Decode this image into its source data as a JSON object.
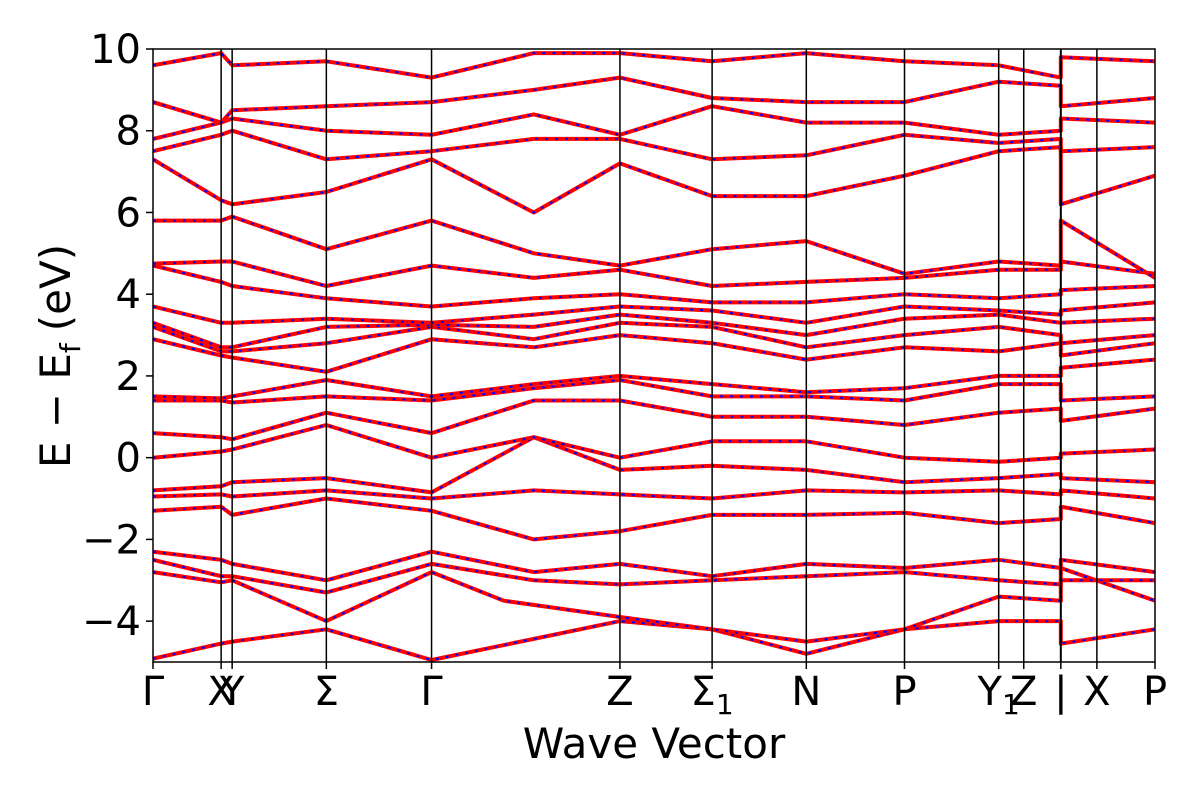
{
  "chart_data": {
    "type": "line",
    "xlabel": "Wave Vector",
    "ylabel": "E − E",
    "ylabel_subscript": "f",
    "ylabel_unit": "(eV)",
    "ylim": [
      -5,
      10
    ],
    "yticks": [
      -4,
      -2,
      0,
      2,
      4,
      6,
      8,
      10
    ],
    "ytick_labels": [
      "−4",
      "−2",
      "0",
      "2",
      "4",
      "6",
      "8",
      "10"
    ],
    "grid": false,
    "legend": "none",
    "high_symmetry_points": [
      {
        "label": "Γ",
        "k": 0.0
      },
      {
        "label": "X",
        "k": 0.068
      },
      {
        "label": "Y",
        "k": 0.079
      },
      {
        "label": "Σ",
        "k": 0.173
      },
      {
        "label": "Γ",
        "k": 0.278
      },
      {
        "label": "Z",
        "k": 0.466
      },
      {
        "label": "Σ",
        "sub": "1",
        "k": 0.558
      },
      {
        "label": "N",
        "k": 0.652
      },
      {
        "label": "P",
        "k": 0.75
      },
      {
        "label": "Y",
        "sub": "1",
        "k": 0.844
      },
      {
        "label": "Z",
        "k": 0.869
      },
      {
        "label": "|",
        "k": 0.906
      },
      {
        "label": "X",
        "k": 0.942
      },
      {
        "label": "P",
        "k": 1.0
      }
    ],
    "series_colors": {
      "spin_up": "#ff0000",
      "spin_down": "#0000ff"
    },
    "bands": [
      [
        [
          0,
          -4.92
        ],
        [
          0.068,
          -4.55
        ],
        [
          0.079,
          -4.5
        ],
        [
          0.173,
          -4.2
        ],
        [
          0.278,
          -4.95
        ],
        [
          0.466,
          -4.0
        ],
        [
          0.558,
          -4.2
        ],
        [
          0.652,
          -4.8
        ],
        [
          0.75,
          -4.2
        ],
        [
          0.844,
          -4.0
        ],
        [
          0.906,
          -4.0
        ],
        [
          0.906,
          -4.55
        ],
        [
          1.0,
          -4.2
        ]
      ],
      [
        [
          0,
          -2.8
        ],
        [
          0.068,
          -3.05
        ],
        [
          0.079,
          -3.0
        ],
        [
          0.173,
          -4.0
        ],
        [
          0.278,
          -2.8
        ],
        [
          0.35,
          -3.5
        ],
        [
          0.466,
          -3.9
        ],
        [
          0.558,
          -4.2
        ],
        [
          0.652,
          -4.5
        ],
        [
          0.75,
          -4.2
        ],
        [
          0.844,
          -3.4
        ],
        [
          0.906,
          -3.5
        ],
        [
          0.906,
          -2.7
        ],
        [
          1.0,
          -3.5
        ]
      ],
      [
        [
          0,
          -2.5
        ],
        [
          0.068,
          -2.9
        ],
        [
          0.079,
          -2.9
        ],
        [
          0.173,
          -3.3
        ],
        [
          0.278,
          -2.6
        ],
        [
          0.38,
          -3.0
        ],
        [
          0.466,
          -3.1
        ],
        [
          0.558,
          -3.0
        ],
        [
          0.652,
          -2.9
        ],
        [
          0.75,
          -2.8
        ],
        [
          0.844,
          -3.0
        ],
        [
          0.906,
          -3.1
        ],
        [
          0.906,
          -3.0
        ],
        [
          1.0,
          -3.0
        ]
      ],
      [
        [
          0,
          -2.3
        ],
        [
          0.068,
          -2.5
        ],
        [
          0.079,
          -2.6
        ],
        [
          0.173,
          -3.0
        ],
        [
          0.278,
          -2.3
        ],
        [
          0.38,
          -2.8
        ],
        [
          0.466,
          -2.6
        ],
        [
          0.558,
          -2.9
        ],
        [
          0.652,
          -2.6
        ],
        [
          0.75,
          -2.7
        ],
        [
          0.844,
          -2.5
        ],
        [
          0.906,
          -2.7
        ],
        [
          0.906,
          -2.5
        ],
        [
          1.0,
          -2.8
        ]
      ],
      [
        [
          0,
          -1.3
        ],
        [
          0.068,
          -1.2
        ],
        [
          0.079,
          -1.4
        ],
        [
          0.173,
          -1.0
        ],
        [
          0.278,
          -1.3
        ],
        [
          0.38,
          -2.0
        ],
        [
          0.466,
          -1.8
        ],
        [
          0.558,
          -1.4
        ],
        [
          0.652,
          -1.4
        ],
        [
          0.75,
          -1.35
        ],
        [
          0.844,
          -1.6
        ],
        [
          0.906,
          -1.5
        ],
        [
          0.906,
          -1.2
        ],
        [
          1.0,
          -1.6
        ]
      ],
      [
        [
          0,
          -0.95
        ],
        [
          0.068,
          -0.9
        ],
        [
          0.079,
          -0.95
        ],
        [
          0.173,
          -0.8
        ],
        [
          0.278,
          -1.0
        ],
        [
          0.38,
          -0.8
        ],
        [
          0.466,
          -0.9
        ],
        [
          0.558,
          -1.0
        ],
        [
          0.652,
          -0.8
        ],
        [
          0.75,
          -0.85
        ],
        [
          0.844,
          -0.8
        ],
        [
          0.906,
          -0.9
        ],
        [
          0.906,
          -0.8
        ],
        [
          1.0,
          -1.0
        ]
      ],
      [
        [
          0,
          -0.8
        ],
        [
          0.068,
          -0.7
        ],
        [
          0.079,
          -0.6
        ],
        [
          0.173,
          -0.5
        ],
        [
          0.278,
          -0.85
        ],
        [
          0.38,
          0.5
        ],
        [
          0.466,
          -0.3
        ],
        [
          0.558,
          -0.2
        ],
        [
          0.652,
          -0.3
        ],
        [
          0.75,
          -0.6
        ],
        [
          0.844,
          -0.5
        ],
        [
          0.906,
          -0.4
        ],
        [
          0.906,
          -0.5
        ],
        [
          1.0,
          -0.6
        ]
      ],
      [
        [
          0,
          0.0
        ],
        [
          0.068,
          0.15
        ],
        [
          0.079,
          0.2
        ],
        [
          0.173,
          0.8
        ],
        [
          0.278,
          0.0
        ],
        [
          0.38,
          0.5
        ],
        [
          0.466,
          0.0
        ],
        [
          0.558,
          0.4
        ],
        [
          0.652,
          0.4
        ],
        [
          0.75,
          0.0
        ],
        [
          0.844,
          -0.1
        ],
        [
          0.906,
          0.0
        ],
        [
          0.906,
          0.1
        ],
        [
          1.0,
          0.2
        ]
      ],
      [
        [
          0,
          0.6
        ],
        [
          0.068,
          0.5
        ],
        [
          0.079,
          0.45
        ],
        [
          0.173,
          1.1
        ],
        [
          0.278,
          0.6
        ],
        [
          0.38,
          1.4
        ],
        [
          0.466,
          1.4
        ],
        [
          0.558,
          1.0
        ],
        [
          0.652,
          1.0
        ],
        [
          0.75,
          0.8
        ],
        [
          0.844,
          1.1
        ],
        [
          0.906,
          1.2
        ],
        [
          0.906,
          0.9
        ],
        [
          1.0,
          1.2
        ]
      ],
      [
        [
          0,
          1.4
        ],
        [
          0.068,
          1.4
        ],
        [
          0.079,
          1.35
        ],
        [
          0.173,
          1.5
        ],
        [
          0.278,
          1.4
        ],
        [
          0.38,
          1.7
        ],
        [
          0.466,
          1.9
        ],
        [
          0.558,
          1.5
        ],
        [
          0.652,
          1.5
        ],
        [
          0.75,
          1.4
        ],
        [
          0.844,
          1.8
        ],
        [
          0.906,
          1.8
        ],
        [
          0.906,
          1.4
        ],
        [
          1.0,
          1.5
        ]
      ],
      [
        [
          0,
          1.5
        ],
        [
          0.068,
          1.45
        ],
        [
          0.079,
          1.5
        ],
        [
          0.173,
          1.9
        ],
        [
          0.278,
          1.5
        ],
        [
          0.38,
          1.8
        ],
        [
          0.466,
          2.0
        ],
        [
          0.558,
          1.8
        ],
        [
          0.652,
          1.6
        ],
        [
          0.75,
          1.7
        ],
        [
          0.844,
          2.0
        ],
        [
          0.906,
          2.0
        ],
        [
          0.906,
          2.2
        ],
        [
          1.0,
          2.4
        ]
      ],
      [
        [
          0,
          2.9
        ],
        [
          0.068,
          2.5
        ],
        [
          0.079,
          2.45
        ],
        [
          0.173,
          2.1
        ],
        [
          0.278,
          2.9
        ],
        [
          0.38,
          2.7
        ],
        [
          0.466,
          3.0
        ],
        [
          0.558,
          2.8
        ],
        [
          0.652,
          2.4
        ],
        [
          0.75,
          2.7
        ],
        [
          0.844,
          2.6
        ],
        [
          0.906,
          2.8
        ],
        [
          0.906,
          2.5
        ],
        [
          1.0,
          2.8
        ]
      ],
      [
        [
          0,
          3.2
        ],
        [
          0.068,
          2.6
        ],
        [
          0.079,
          2.6
        ],
        [
          0.173,
          2.8
        ],
        [
          0.278,
          3.2
        ],
        [
          0.38,
          2.9
        ],
        [
          0.466,
          3.3
        ],
        [
          0.558,
          3.2
        ],
        [
          0.652,
          2.7
        ],
        [
          0.75,
          3.0
        ],
        [
          0.844,
          3.2
        ],
        [
          0.906,
          3.0
        ],
        [
          0.906,
          2.8
        ],
        [
          1.0,
          3.0
        ]
      ],
      [
        [
          0,
          3.3
        ],
        [
          0.068,
          2.7
        ],
        [
          0.079,
          2.7
        ],
        [
          0.173,
          3.2
        ],
        [
          0.278,
          3.25
        ],
        [
          0.38,
          3.2
        ],
        [
          0.466,
          3.5
        ],
        [
          0.558,
          3.3
        ],
        [
          0.652,
          3.0
        ],
        [
          0.75,
          3.4
        ],
        [
          0.844,
          3.5
        ],
        [
          0.906,
          3.3
        ],
        [
          0.906,
          3.3
        ],
        [
          1.0,
          3.4
        ]
      ],
      [
        [
          0,
          3.7
        ],
        [
          0.068,
          3.3
        ],
        [
          0.079,
          3.3
        ],
        [
          0.173,
          3.4
        ],
        [
          0.278,
          3.3
        ],
        [
          0.38,
          3.5
        ],
        [
          0.466,
          3.7
        ],
        [
          0.558,
          3.6
        ],
        [
          0.652,
          3.3
        ],
        [
          0.75,
          3.7
        ],
        [
          0.844,
          3.6
        ],
        [
          0.906,
          3.5
        ],
        [
          0.906,
          3.6
        ],
        [
          1.0,
          3.8
        ]
      ],
      [
        [
          0,
          4.7
        ],
        [
          0.068,
          4.3
        ],
        [
          0.079,
          4.2
        ],
        [
          0.173,
          3.9
        ],
        [
          0.278,
          3.7
        ],
        [
          0.38,
          3.9
        ],
        [
          0.466,
          4.0
        ],
        [
          0.558,
          3.8
        ],
        [
          0.652,
          3.8
        ],
        [
          0.75,
          4.0
        ],
        [
          0.844,
          3.9
        ],
        [
          0.906,
          4.0
        ],
        [
          0.906,
          4.1
        ],
        [
          1.0,
          4.2
        ]
      ],
      [
        [
          0,
          4.75
        ],
        [
          0.068,
          4.8
        ],
        [
          0.079,
          4.8
        ],
        [
          0.173,
          4.2
        ],
        [
          0.278,
          4.7
        ],
        [
          0.38,
          4.4
        ],
        [
          0.466,
          4.6
        ],
        [
          0.558,
          4.2
        ],
        [
          0.652,
          4.3
        ],
        [
          0.75,
          4.4
        ],
        [
          0.844,
          4.6
        ],
        [
          0.906,
          4.6
        ],
        [
          0.906,
          4.8
        ],
        [
          1.0,
          4.5
        ]
      ],
      [
        [
          0,
          5.8
        ],
        [
          0.068,
          5.8
        ],
        [
          0.079,
          5.9
        ],
        [
          0.173,
          5.1
        ],
        [
          0.278,
          5.8
        ],
        [
          0.38,
          5.0
        ],
        [
          0.466,
          4.7
        ],
        [
          0.558,
          5.1
        ],
        [
          0.652,
          5.3
        ],
        [
          0.75,
          4.5
        ],
        [
          0.844,
          4.8
        ],
        [
          0.906,
          4.7
        ],
        [
          0.906,
          5.8
        ],
        [
          1.0,
          4.4
        ]
      ],
      [
        [
          0,
          7.3
        ],
        [
          0.068,
          6.3
        ],
        [
          0.079,
          6.2
        ],
        [
          0.173,
          6.5
        ],
        [
          0.278,
          7.3
        ],
        [
          0.38,
          6.0
        ],
        [
          0.466,
          7.2
        ],
        [
          0.558,
          6.4
        ],
        [
          0.652,
          6.4
        ],
        [
          0.75,
          6.9
        ],
        [
          0.844,
          7.5
        ],
        [
          0.906,
          7.6
        ],
        [
          0.906,
          6.2
        ],
        [
          1.0,
          6.9
        ]
      ],
      [
        [
          0,
          7.5
        ],
        [
          0.068,
          7.9
        ],
        [
          0.079,
          8.0
        ],
        [
          0.173,
          7.3
        ],
        [
          0.278,
          7.5
        ],
        [
          0.38,
          7.8
        ],
        [
          0.466,
          7.8
        ],
        [
          0.558,
          7.3
        ],
        [
          0.652,
          7.4
        ],
        [
          0.75,
          7.9
        ],
        [
          0.844,
          7.7
        ],
        [
          0.906,
          7.8
        ],
        [
          0.906,
          7.5
        ],
        [
          1.0,
          7.6
        ]
      ],
      [
        [
          0,
          7.8
        ],
        [
          0.068,
          8.2
        ],
        [
          0.079,
          8.3
        ],
        [
          0.173,
          8.0
        ],
        [
          0.278,
          7.9
        ],
        [
          0.38,
          8.4
        ],
        [
          0.466,
          7.9
        ],
        [
          0.558,
          8.6
        ],
        [
          0.652,
          8.2
        ],
        [
          0.75,
          8.2
        ],
        [
          0.844,
          7.9
        ],
        [
          0.906,
          8.0
        ],
        [
          0.906,
          8.3
        ],
        [
          1.0,
          8.2
        ]
      ],
      [
        [
          0,
          8.7
        ],
        [
          0.068,
          8.2
        ],
        [
          0.079,
          8.5
        ],
        [
          0.173,
          8.6
        ],
        [
          0.278,
          8.7
        ],
        [
          0.38,
          9.0
        ],
        [
          0.466,
          9.3
        ],
        [
          0.558,
          8.8
        ],
        [
          0.652,
          8.7
        ],
        [
          0.75,
          8.7
        ],
        [
          0.844,
          9.2
        ],
        [
          0.906,
          9.1
        ],
        [
          0.906,
          8.6
        ],
        [
          1.0,
          8.8
        ]
      ],
      [
        [
          0,
          9.6
        ],
        [
          0.068,
          9.9
        ],
        [
          0.079,
          9.6
        ],
        [
          0.173,
          9.7
        ],
        [
          0.278,
          9.3
        ],
        [
          0.38,
          9.9
        ],
        [
          0.466,
          9.9
        ],
        [
          0.558,
          9.7
        ],
        [
          0.652,
          9.9
        ],
        [
          0.75,
          9.7
        ],
        [
          0.844,
          9.6
        ],
        [
          0.906,
          9.3
        ],
        [
          0.906,
          9.8
        ],
        [
          1.0,
          9.7
        ]
      ]
    ]
  }
}
